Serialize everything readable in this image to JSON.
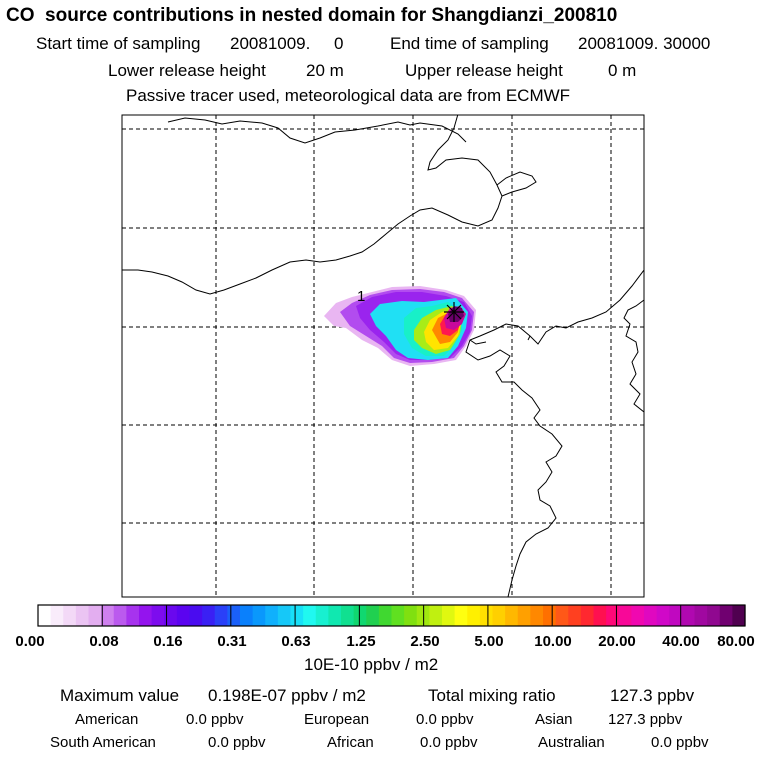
{
  "header": {
    "title": "CO  source contributions in nested domain for Shangdianzi_200810",
    "start_label": "Start time of sampling",
    "start_value": "20081009.     0",
    "end_label": "End time of sampling",
    "end_value": "20081009. 30000",
    "lower_label": "Lower release height",
    "lower_value": "20 m",
    "upper_label": "Upper release height",
    "upper_value": "0 m",
    "tracer_note": "Passive tracer used, meteorological data are from ECMWF"
  },
  "map": {
    "site_marker_label": "1"
  },
  "colorbar": {
    "ticks": [
      "0.00",
      "0.08",
      "0.16",
      "0.31",
      "0.63",
      "1.25",
      "2.50",
      "5.00",
      "10.00",
      "20.00",
      "40.00",
      "80.00"
    ],
    "unit": "10E-10 ppbv / m2",
    "colors": [
      "#ffffff",
      "#f9ecfb",
      "#f3d9f7",
      "#ebc4f3",
      "#e3aef0",
      "#cf80ef",
      "#bb5aee",
      "#a733ee",
      "#9414ee",
      "#7d0cee",
      "#6a08ee",
      "#5b04f0",
      "#4a0cf0",
      "#3a20f4",
      "#2a40f8",
      "#1a60fa",
      "#0a80fc",
      "#0a98fc",
      "#10b0fc",
      "#16c8f8",
      "#18e0f8",
      "#20f8f0",
      "#18f0d0",
      "#10e8b0",
      "#10e090",
      "#10d870",
      "#20d050",
      "#40d830",
      "#60e020",
      "#80e010",
      "#a0e810",
      "#c0f010",
      "#e0f810",
      "#ffff10",
      "#fff000",
      "#ffe000",
      "#ffd000",
      "#ffb800",
      "#ffa000",
      "#ff8800",
      "#ff7000",
      "#ff5818",
      "#ff4020",
      "#ff2830",
      "#ff1050",
      "#ff0878",
      "#f80898",
      "#f008b0",
      "#e008c0",
      "#d008c8",
      "#c008c0",
      "#b008b0",
      "#a008a0",
      "#900890",
      "#700070",
      "#500050"
    ]
  },
  "stats": {
    "max_label": "Maximum value",
    "max_value": "0.198E-07 ppbv / m2",
    "total_label": "Total mixing ratio",
    "total_value": "127.3 ppbv"
  },
  "regions": [
    {
      "name": "American",
      "value": "0.0 ppbv"
    },
    {
      "name": "European",
      "value": "0.0 ppbv"
    },
    {
      "name": "Asian",
      "value": "127.3 ppbv"
    },
    {
      "name": "South American",
      "value": "0.0 ppbv"
    },
    {
      "name": "African",
      "value": "0.0 ppbv"
    },
    {
      "name": "Australian",
      "value": "0.0 ppbv"
    }
  ]
}
